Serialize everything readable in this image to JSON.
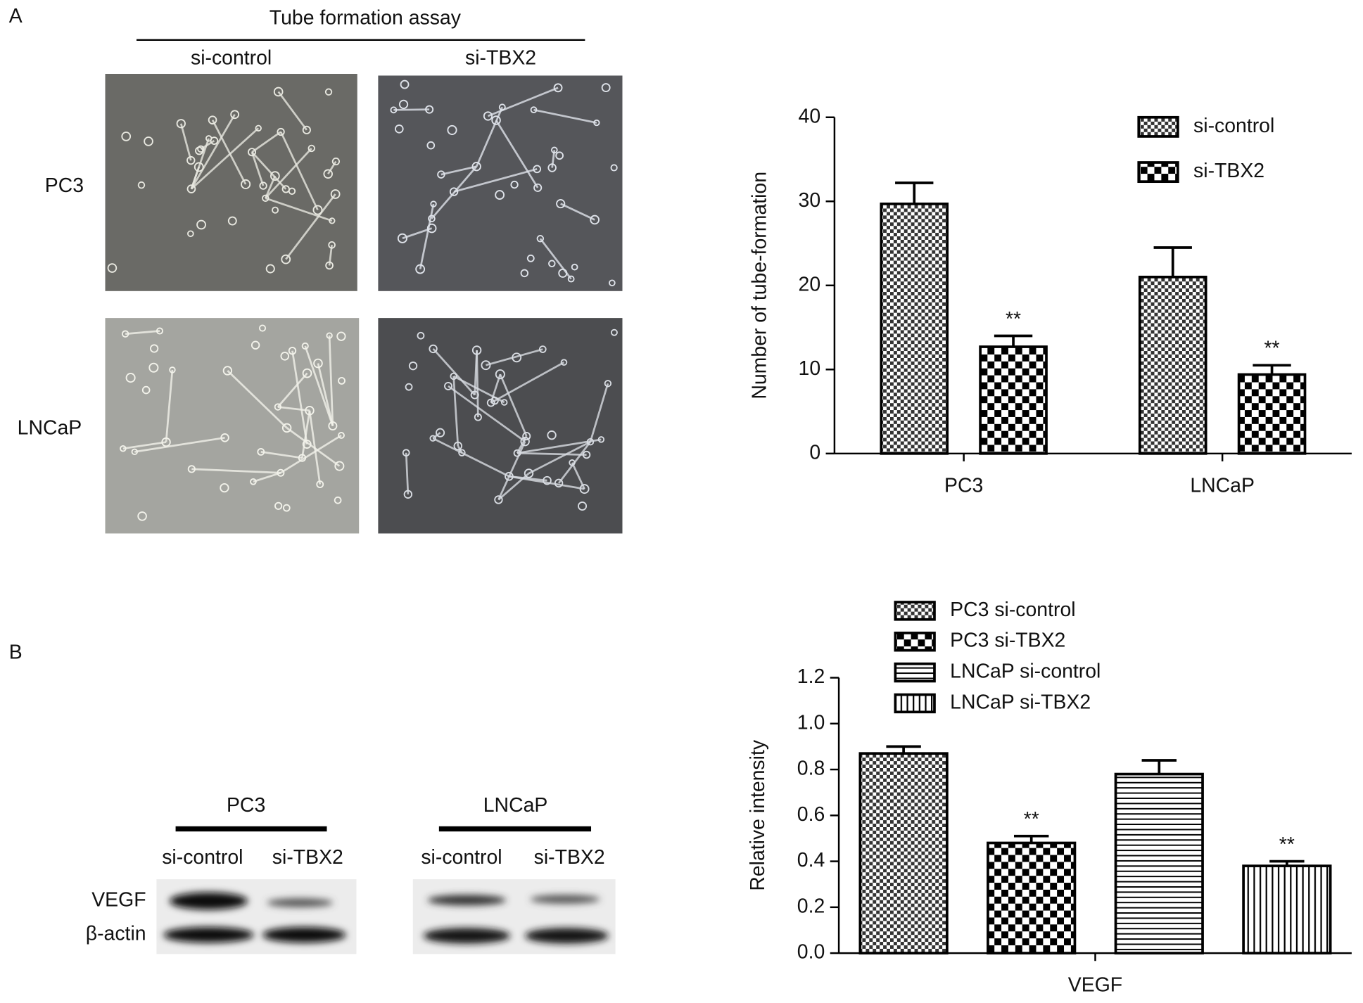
{
  "panels": {
    "a": "A",
    "b": "B"
  },
  "tube_assay": {
    "title": "Tube formation assay",
    "columns": [
      "si-control",
      "si-TBX2"
    ],
    "rows": [
      "PC3",
      "LNCaP"
    ]
  },
  "western_blot": {
    "groups": [
      {
        "name": "PC3",
        "lanes": [
          "si-control",
          "si-TBX2"
        ]
      },
      {
        "name": "LNCaP",
        "lanes": [
          "si-control",
          "si-TBX2"
        ]
      }
    ],
    "rows": [
      "VEGF",
      "β-actin"
    ]
  },
  "chart_data": [
    {
      "type": "bar",
      "y_label": "Number of tube-formation",
      "categories": [
        "PC3",
        "LNCaP"
      ],
      "series": [
        {
          "name": "si-control",
          "color": "#000000",
          "pattern": "checker-fine",
          "values": [
            29.7,
            21.0
          ],
          "errors": [
            2.5,
            3.5
          ]
        },
        {
          "name": "si-TBX2",
          "color": "#000000",
          "pattern": "checker",
          "values": [
            12.7,
            9.4
          ],
          "errors": [
            1.3,
            1.1
          ]
        }
      ],
      "annotations": [
        {
          "text": "**",
          "series": 1,
          "category": 0
        },
        {
          "text": "**",
          "series": 1,
          "category": 1
        }
      ],
      "ylim": [
        0,
        40
      ],
      "yticks": [
        0,
        10,
        20,
        30,
        40
      ],
      "legend": "upper right"
    },
    {
      "type": "bar",
      "y_label": "Relative intensity",
      "categories": [
        "VEGF"
      ],
      "series": [
        {
          "name": "PC3 si-control",
          "color": "#000000",
          "pattern": "checker-fine",
          "values": [
            0.87
          ],
          "errors": [
            0.03
          ]
        },
        {
          "name": "PC3 si-TBX2",
          "color": "#000000",
          "pattern": "checker",
          "values": [
            0.48
          ],
          "errors": [
            0.03
          ]
        },
        {
          "name": "LNCaP si-control",
          "color": "#000000",
          "pattern": "horizontal",
          "values": [
            0.78
          ],
          "errors": [
            0.06
          ]
        },
        {
          "name": "LNCaP si-TBX2",
          "color": "#000000",
          "pattern": "vertical",
          "values": [
            0.38
          ],
          "errors": [
            0.02
          ]
        }
      ],
      "annotations": [
        {
          "text": "**",
          "series": 1,
          "category": 0
        },
        {
          "text": "**",
          "series": 3,
          "category": 0
        }
      ],
      "ylim": [
        0,
        1.2
      ],
      "yticks": [
        {
          "value": 0,
          "label": "0.0"
        },
        0.2,
        0.4,
        0.6,
        0.8,
        {
          "value": 1,
          "label": "1.0"
        },
        1.2
      ],
      "legend": "top"
    }
  ]
}
